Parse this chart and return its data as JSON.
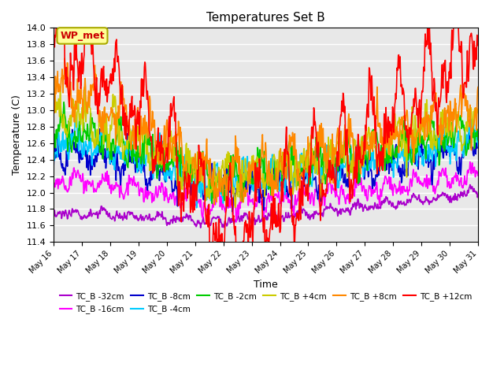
{
  "title": "Temperatures Set B",
  "xlabel": "Time",
  "ylabel": "Temperature (C)",
  "ylim": [
    11.4,
    14.0
  ],
  "series_labels": [
    "TC_B -32cm",
    "TC_B -16cm",
    "TC_B -8cm",
    "TC_B -4cm",
    "TC_B -2cm",
    "TC_B +4cm",
    "TC_B +8cm",
    "TC_B +12cm"
  ],
  "series_colors": [
    "#aa00cc",
    "#ff00ff",
    "#0000cc",
    "#00ccff",
    "#00cc00",
    "#cccc00",
    "#ff8800",
    "#ff0000"
  ],
  "legend_label": "WP_met",
  "legend_bg": "#ffff99",
  "legend_edge": "#aaaa00",
  "x_tick_labels": [
    "May 16",
    "May 17",
    "May 18",
    "May 19",
    "May 20",
    "May 21",
    "May 22",
    "May 23",
    "May 24",
    "May 25",
    "May 26",
    "May 27",
    "May 28",
    "May 29",
    "May 30",
    "May 31"
  ],
  "n_points": 960,
  "background_color": "#e8e8e8",
  "grid_color": "#ffffff"
}
